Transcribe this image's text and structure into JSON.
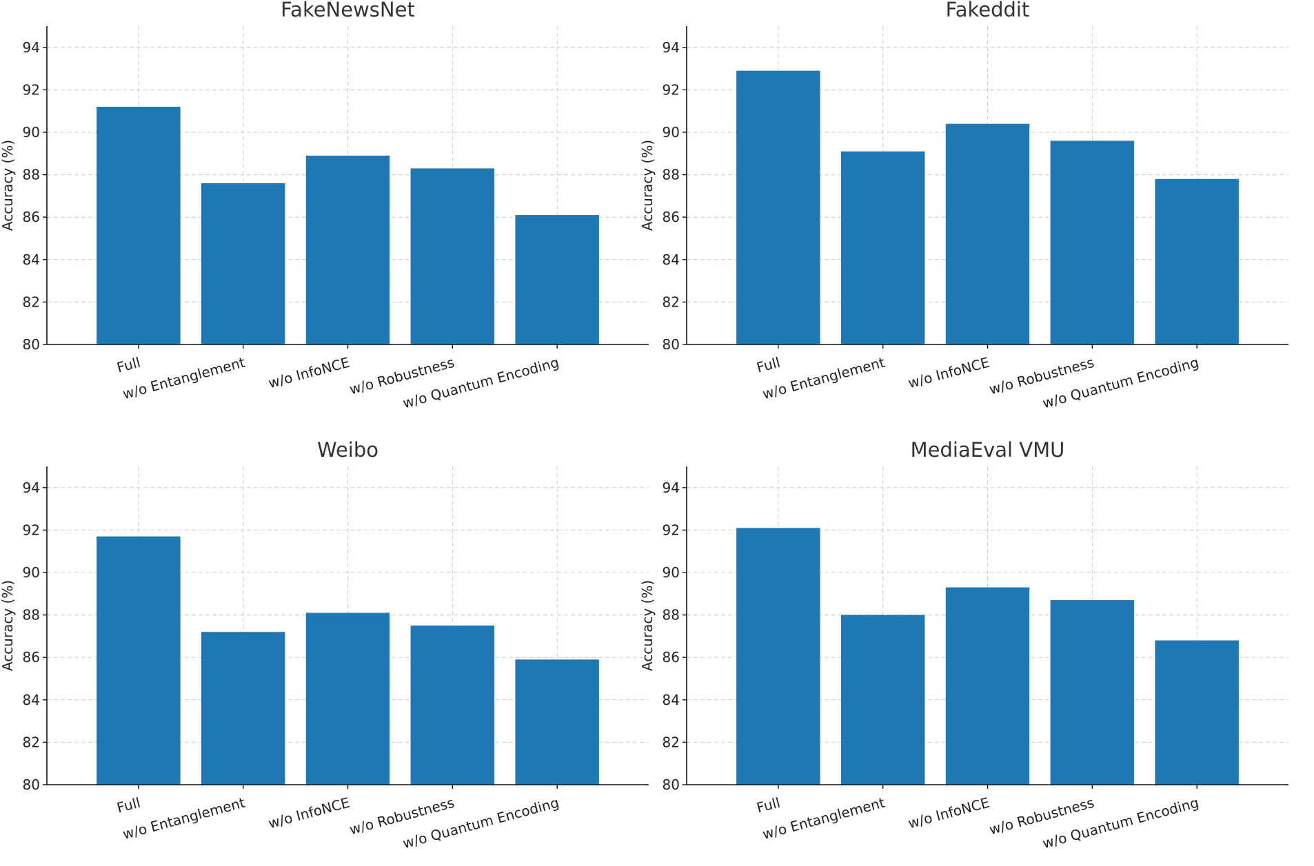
{
  "chart_data": [
    {
      "type": "bar",
      "title": "FakeNewsNet",
      "categories": [
        "Full",
        "w/o Entanglement",
        "w/o InfoNCE",
        "w/o Robustness",
        "w/o Quantum Encoding"
      ],
      "values": [
        91.2,
        87.6,
        88.9,
        88.3,
        86.1
      ],
      "xlabel": "",
      "ylabel": "Accuracy (%)",
      "ylim": [
        80,
        95
      ],
      "yticks": [
        80,
        82,
        84,
        86,
        88,
        90,
        92,
        94
      ],
      "grid": true,
      "color": "#1f77b4"
    },
    {
      "type": "bar",
      "title": "Fakeddit",
      "categories": [
        "Full",
        "w/o Entanglement",
        "w/o InfoNCE",
        "w/o Robustness",
        "w/o Quantum Encoding"
      ],
      "values": [
        92.9,
        89.1,
        90.4,
        89.6,
        87.8
      ],
      "xlabel": "",
      "ylabel": "Accuracy (%)",
      "ylim": [
        80,
        95
      ],
      "yticks": [
        80,
        82,
        84,
        86,
        88,
        90,
        92,
        94
      ],
      "grid": true,
      "color": "#1f77b4"
    },
    {
      "type": "bar",
      "title": "Weibo",
      "categories": [
        "Full",
        "w/o Entanglement",
        "w/o InfoNCE",
        "w/o Robustness",
        "w/o Quantum Encoding"
      ],
      "values": [
        91.7,
        87.2,
        88.1,
        87.5,
        85.9
      ],
      "xlabel": "",
      "ylabel": "Accuracy (%)",
      "ylim": [
        80,
        95
      ],
      "yticks": [
        80,
        82,
        84,
        86,
        88,
        90,
        92,
        94
      ],
      "grid": true,
      "color": "#1f77b4"
    },
    {
      "type": "bar",
      "title": "MediaEval VMU",
      "categories": [
        "Full",
        "w/o Entanglement",
        "w/o InfoNCE",
        "w/o Robustness",
        "w/o Quantum Encoding"
      ],
      "values": [
        92.1,
        88.0,
        89.3,
        88.7,
        86.8
      ],
      "xlabel": "",
      "ylabel": "Accuracy (%)",
      "ylim": [
        80,
        95
      ],
      "yticks": [
        80,
        82,
        84,
        86,
        88,
        90,
        92,
        94
      ],
      "grid": true,
      "color": "#1f77b4"
    }
  ]
}
